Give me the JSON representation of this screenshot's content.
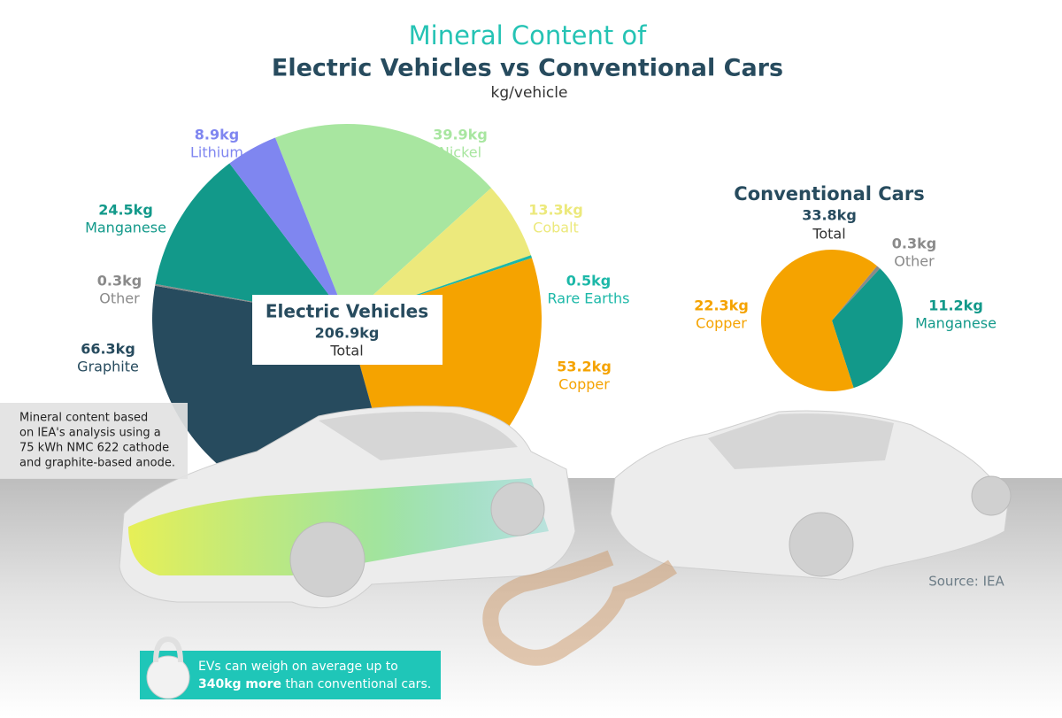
{
  "title": "Mineral Content of",
  "headline": "Electric Vehicles vs Conventional Cars",
  "subtitle": "kg/vehicle",
  "note": [
    "Mineral content based",
    "on IEA's analysis using a",
    "75 kWh NMC 622 cathode",
    "and graphite-based anode."
  ],
  "source": "Source: IEA",
  "callout": {
    "line1": "EVs can weigh on average up to",
    "highlight": "340kg more",
    "rest": "than conventional cars."
  },
  "chart_data": [
    {
      "type": "pie",
      "title": "Electric Vehicles",
      "total": {
        "value": 206.9,
        "label": "206.9kg"
      },
      "total_caption": "Total",
      "categories": [
        "Nickel",
        "Cobalt",
        "Rare Earths",
        "Copper",
        "Graphite",
        "Other",
        "Manganese",
        "Lithium"
      ],
      "values": [
        39.9,
        13.3,
        0.5,
        53.2,
        66.3,
        0.3,
        24.5,
        8.9
      ],
      "value_labels": [
        "39.9kg",
        "13.3kg",
        "0.5kg",
        "53.2kg",
        "66.3kg",
        "0.3kg",
        "24.5kg",
        "8.9kg"
      ],
      "colors": [
        "#a8e6a0",
        "#ece97c",
        "#1cb8a8",
        "#f5a300",
        "#274b5e",
        "#8a8a8a",
        "#12998a",
        "#7f86f0"
      ]
    },
    {
      "type": "pie",
      "title": "Conventional Cars",
      "total": {
        "value": 33.8,
        "label": "33.8kg"
      },
      "total_caption": "Total",
      "categories": [
        "Other",
        "Manganese",
        "Copper"
      ],
      "values": [
        0.3,
        11.2,
        22.3
      ],
      "value_labels": [
        "0.3kg",
        "11.2kg",
        "22.3kg"
      ],
      "colors": [
        "#8a8a8a",
        "#12998a",
        "#f5a300"
      ]
    }
  ]
}
